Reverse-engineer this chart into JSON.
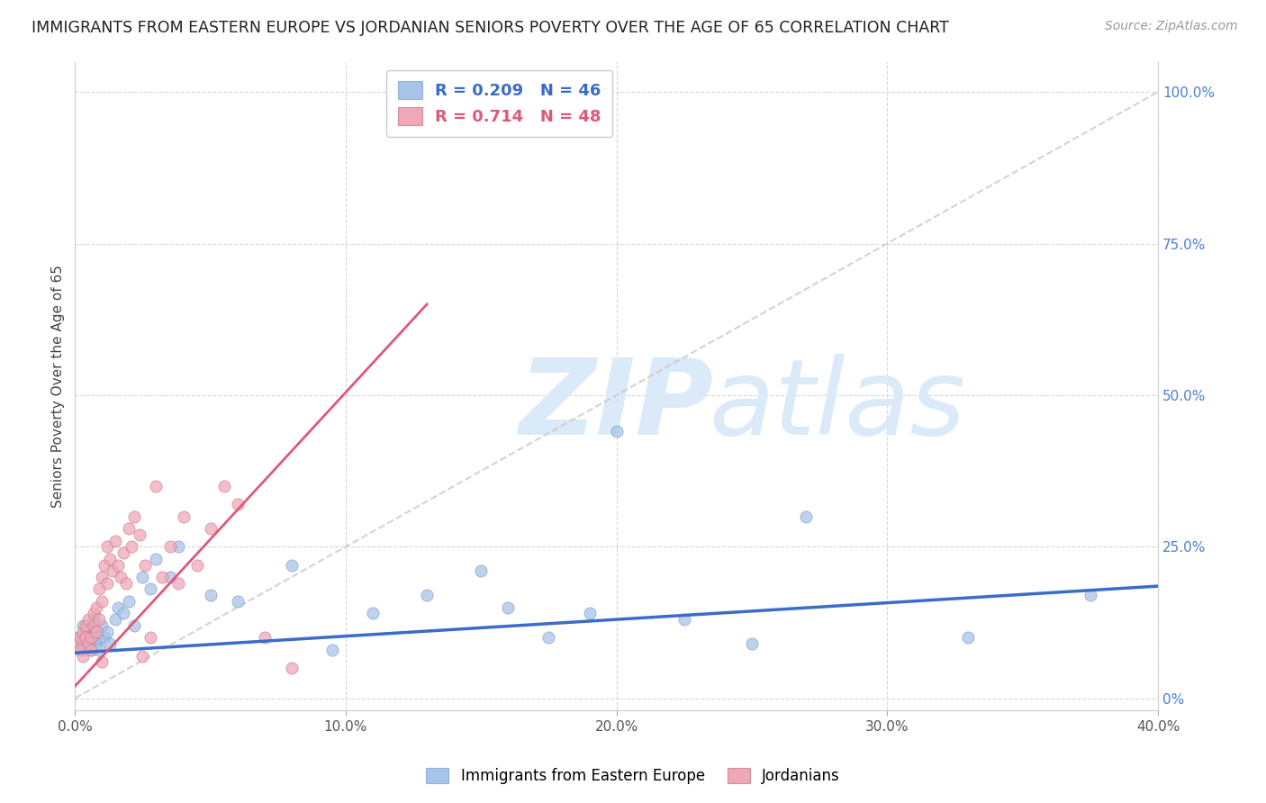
{
  "title": "IMMIGRANTS FROM EASTERN EUROPE VS JORDANIAN SENIORS POVERTY OVER THE AGE OF 65 CORRELATION CHART",
  "source": "Source: ZipAtlas.com",
  "ylabel": "Seniors Poverty Over the Age of 65",
  "xlim": [
    0,
    0.4
  ],
  "ylim": [
    -0.02,
    1.05
  ],
  "blue_R": 0.209,
  "blue_N": 46,
  "pink_R": 0.714,
  "pink_N": 48,
  "blue_color": "#a8c4e8",
  "pink_color": "#f0a8b8",
  "blue_line_color": "#3a6cc8",
  "pink_line_color": "#e05878",
  "diagonal_color": "#c8c8c8",
  "background_color": "#ffffff",
  "grid_color": "#d8d8d8",
  "title_color": "#222222",
  "source_color": "#999999",
  "legend_label_blue": "Immigrants from Eastern Europe",
  "legend_label_pink": "Jordanians",
  "blue_scatter_x": [
    0.001,
    0.002,
    0.003,
    0.003,
    0.004,
    0.004,
    0.005,
    0.005,
    0.006,
    0.006,
    0.007,
    0.007,
    0.008,
    0.008,
    0.009,
    0.009,
    0.01,
    0.011,
    0.012,
    0.013,
    0.015,
    0.016,
    0.018,
    0.02,
    0.022,
    0.025,
    0.028,
    0.03,
    0.035,
    0.038,
    0.05,
    0.06,
    0.08,
    0.095,
    0.11,
    0.13,
    0.15,
    0.16,
    0.175,
    0.19,
    0.2,
    0.225,
    0.25,
    0.27,
    0.33,
    0.375
  ],
  "blue_scatter_y": [
    0.1,
    0.09,
    0.12,
    0.08,
    0.11,
    0.1,
    0.09,
    0.12,
    0.08,
    0.11,
    0.1,
    0.13,
    0.09,
    0.11,
    0.1,
    0.08,
    0.12,
    0.1,
    0.11,
    0.09,
    0.13,
    0.15,
    0.14,
    0.16,
    0.12,
    0.2,
    0.18,
    0.23,
    0.2,
    0.25,
    0.17,
    0.16,
    0.22,
    0.08,
    0.14,
    0.17,
    0.21,
    0.15,
    0.1,
    0.14,
    0.44,
    0.13,
    0.09,
    0.3,
    0.1,
    0.17
  ],
  "pink_scatter_x": [
    0.001,
    0.002,
    0.002,
    0.003,
    0.003,
    0.004,
    0.004,
    0.005,
    0.005,
    0.006,
    0.006,
    0.007,
    0.007,
    0.008,
    0.008,
    0.009,
    0.009,
    0.01,
    0.01,
    0.011,
    0.012,
    0.012,
    0.013,
    0.014,
    0.015,
    0.016,
    0.017,
    0.018,
    0.019,
    0.02,
    0.021,
    0.022,
    0.024,
    0.026,
    0.028,
    0.03,
    0.032,
    0.035,
    0.038,
    0.04,
    0.045,
    0.05,
    0.055,
    0.06,
    0.07,
    0.08,
    0.01,
    0.025
  ],
  "pink_scatter_y": [
    0.09,
    0.1,
    0.08,
    0.11,
    0.07,
    0.12,
    0.1,
    0.09,
    0.13,
    0.1,
    0.08,
    0.14,
    0.12,
    0.15,
    0.11,
    0.18,
    0.13,
    0.16,
    0.2,
    0.22,
    0.19,
    0.25,
    0.23,
    0.21,
    0.26,
    0.22,
    0.2,
    0.24,
    0.19,
    0.28,
    0.25,
    0.3,
    0.27,
    0.22,
    0.1,
    0.35,
    0.2,
    0.25,
    0.19,
    0.3,
    0.22,
    0.28,
    0.35,
    0.32,
    0.1,
    0.05,
    0.06,
    0.07
  ],
  "watermark_zip": "ZIP",
  "watermark_atlas": "atlas",
  "watermark_color": "#daeaf8",
  "watermark_fontsize": 85
}
